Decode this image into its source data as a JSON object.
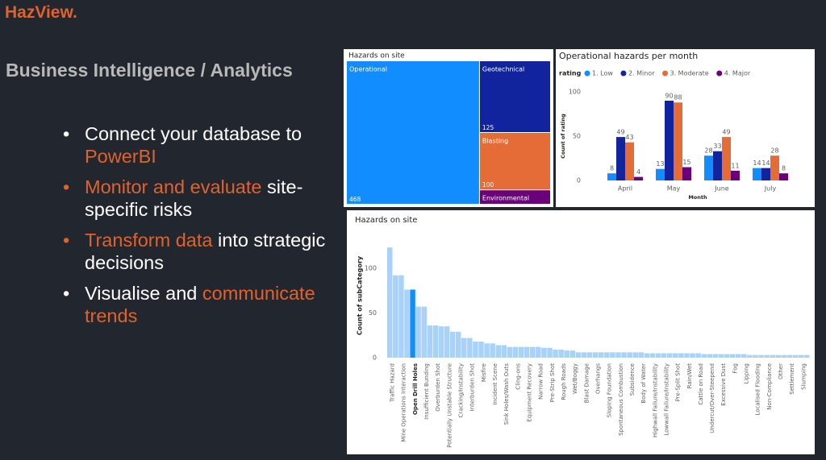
{
  "header": {
    "logo": "HazView.",
    "logo_color": "#e0622d",
    "title": "Business Intelligence / Analytics",
    "title_color": "#b8b8b8"
  },
  "bullets": [
    {
      "marker_color": "#ffffff",
      "parts": [
        {
          "text": "Connect your database to ",
          "color": "#ffffff"
        },
        {
          "text": "PowerBI",
          "color": "#e0622d"
        }
      ]
    },
    {
      "marker_color": "#e0622d",
      "parts": [
        {
          "text": "Monitor and evaluate",
          "color": "#e0622d"
        },
        {
          "text": " site-specific risks",
          "color": "#ffffff"
        }
      ]
    },
    {
      "marker_color": "#e0622d",
      "parts": [
        {
          "text": "Transform data",
          "color": "#e0622d"
        },
        {
          "text": " into strategic decisions",
          "color": "#ffffff"
        }
      ]
    },
    {
      "marker_color": "#ffffff",
      "parts": [
        {
          "text": "Visualise and ",
          "color": "#ffffff"
        },
        {
          "text": "communicate trends",
          "color": "#e0622d"
        }
      ]
    }
  ],
  "chart_data": [
    {
      "type": "treemap",
      "title": "Hazards on site",
      "categories": [
        "Operational",
        "Geotechnical",
        "Blasting",
        "Environmental"
      ],
      "values": [
        468,
        125,
        100,
        25
      ],
      "value_labels": [
        "468",
        "125",
        "100",
        null
      ],
      "colors": [
        "#118dff",
        "#12239e",
        "#e66c37",
        "#6b007b"
      ]
    },
    {
      "type": "grouped_bar",
      "title": "Operational hazards per month",
      "legend_title": "rating",
      "categories": [
        "April",
        "May",
        "June",
        "July"
      ],
      "x_label": "Month",
      "y_label": "Count of rating",
      "series": [
        {
          "name": "1. Low",
          "color": "#118dff",
          "values": [
            8,
            13,
            28,
            14
          ]
        },
        {
          "name": "2. Minor",
          "color": "#12239e",
          "values": [
            49,
            90,
            33,
            14
          ]
        },
        {
          "name": "3. Moderate",
          "color": "#e66c37",
          "values": [
            43,
            88,
            49,
            28
          ]
        },
        {
          "name": "4. Major",
          "color": "#6b007b",
          "values": [
            4,
            15,
            11,
            8
          ]
        }
      ],
      "ylim": [
        0,
        100
      ],
      "yticks": [
        0,
        50,
        100
      ],
      "grid": false
    },
    {
      "type": "bar",
      "title": "Hazards on site",
      "y_label": "Count of subCategory",
      "categories": [
        "Traffic Hazard",
        null,
        "Mine Operations Interaction",
        null,
        "Open Drill Holes",
        null,
        "Insufficient Bunding",
        null,
        "Overburden Shot",
        null,
        "Potentially Unstable Structure",
        null,
        "Cracking/Instability",
        null,
        "Interburden Shot",
        null,
        "Misfire",
        null,
        "Incident Scene",
        null,
        "Sink Holes/Wash Outs",
        null,
        "Cling-ons",
        null,
        "Equipment Recovery",
        null,
        "Narrow Road",
        null,
        "Pre-Strip Shot",
        null,
        "Rough Roads",
        null,
        "Wet/Boggy",
        null,
        "Blast Damage",
        null,
        "Overhangs",
        null,
        "Sloping Foundation",
        null,
        "Spontaneous Combustion",
        null,
        "Subsidence",
        null,
        "Body of Water",
        null,
        "Highwall Failure/Instability",
        null,
        "Lowwall Failure/Instability",
        null,
        "Pre-Split Shot",
        null,
        "Rain/Wet",
        null,
        "Cattle on Road",
        null,
        "Undercut/Over-Steepend",
        null,
        "Excessive Dust",
        null,
        "Fog",
        null,
        "Lipping",
        null,
        "Localised Flooding",
        null,
        "Non-Compliance",
        null,
        "Other",
        null,
        "Settlement",
        null,
        "Slumping",
        null
      ],
      "values": [
        123,
        92,
        92,
        76,
        76,
        57,
        57,
        36,
        36,
        35,
        35,
        29,
        29,
        22,
        22,
        18,
        18,
        16,
        16,
        14,
        14,
        12,
        12,
        12,
        12,
        12,
        12,
        11,
        11,
        9,
        9,
        8,
        8,
        6,
        6,
        6,
        6,
        6,
        6,
        6,
        6,
        6,
        6,
        6,
        6,
        5,
        5,
        5,
        5,
        5,
        5,
        5,
        5,
        5,
        5,
        4,
        4,
        4,
        4,
        4,
        4,
        4,
        4,
        3,
        3,
        3,
        3,
        3,
        3,
        3,
        3,
        3,
        3,
        3
      ],
      "color": "#a9d2fb",
      "highlight": 4,
      "highlight_color": "#118dff",
      "ylim": [
        0,
        125
      ],
      "yticks": [
        0,
        50,
        100
      ],
      "grid": false
    }
  ]
}
